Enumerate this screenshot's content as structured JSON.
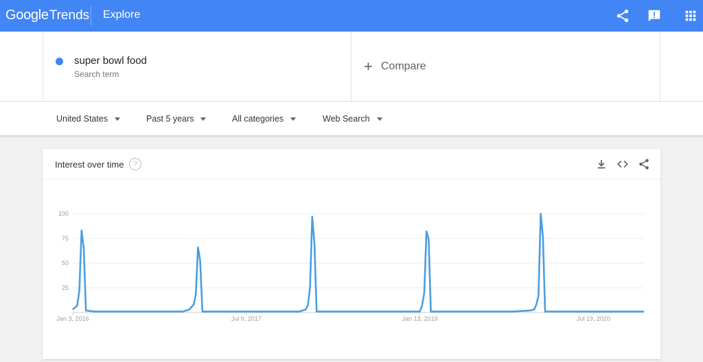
{
  "header": {
    "logo_google": "Google",
    "logo_trends": "Trends",
    "section": "Explore"
  },
  "search": {
    "term": "super bowl food",
    "term_type": "Search term",
    "compare_label": "Compare",
    "term_color": "#4285f4"
  },
  "filters": {
    "region": "United States",
    "time_range": "Past 5 years",
    "category": "All categories",
    "search_type": "Web Search"
  },
  "card": {
    "title": "Interest over time",
    "help": "?"
  },
  "icons": {
    "header": [
      "share-icon",
      "feedback-icon",
      "apps-icon"
    ],
    "card": [
      "download-icon",
      "embed-icon",
      "share-icon"
    ]
  },
  "chart_data": {
    "type": "line",
    "title": "Interest over time",
    "series_color": "#4a9ee0",
    "ylim": [
      0,
      100
    ],
    "y_ticks": [
      "100",
      "75",
      "50",
      "25"
    ],
    "x_labels": [
      "Jan 3, 2016",
      "Jul 9, 2017",
      "Jan 13, 2019",
      "Jul 19, 2020"
    ],
    "x_start": "2016-01-03",
    "x_end": "2020-12-27",
    "grid": true,
    "points": [
      [
        "2016-01-03",
        3
      ],
      [
        "2016-01-17",
        7
      ],
      [
        "2016-01-24",
        22
      ],
      [
        "2016-01-31",
        83
      ],
      [
        "2016-02-07",
        65
      ],
      [
        "2016-02-14",
        2
      ],
      [
        "2016-03-13",
        1
      ],
      [
        "2016-05-01",
        1
      ],
      [
        "2016-07-03",
        1
      ],
      [
        "2016-09-04",
        1
      ],
      [
        "2016-11-06",
        1
      ],
      [
        "2016-12-18",
        1
      ],
      [
        "2017-01-08",
        3
      ],
      [
        "2017-01-22",
        8
      ],
      [
        "2017-01-29",
        18
      ],
      [
        "2017-02-05",
        66
      ],
      [
        "2017-02-12",
        52
      ],
      [
        "2017-02-19",
        1
      ],
      [
        "2017-05-07",
        1
      ],
      [
        "2017-08-06",
        1
      ],
      [
        "2017-11-05",
        1
      ],
      [
        "2017-12-24",
        1
      ],
      [
        "2018-01-14",
        3
      ],
      [
        "2018-01-21",
        7
      ],
      [
        "2018-01-28",
        25
      ],
      [
        "2018-02-04",
        97
      ],
      [
        "2018-02-11",
        70
      ],
      [
        "2018-02-18",
        1
      ],
      [
        "2018-05-06",
        1
      ],
      [
        "2018-08-05",
        1
      ],
      [
        "2018-11-04",
        1
      ],
      [
        "2018-12-30",
        1
      ],
      [
        "2019-01-13",
        1
      ],
      [
        "2019-01-20",
        7
      ],
      [
        "2019-01-27",
        20
      ],
      [
        "2019-02-03",
        82
      ],
      [
        "2019-02-10",
        74
      ],
      [
        "2019-02-17",
        1
      ],
      [
        "2019-05-05",
        1
      ],
      [
        "2019-08-04",
        1
      ],
      [
        "2019-11-03",
        1
      ],
      [
        "2019-12-29",
        2
      ],
      [
        "2020-01-12",
        3
      ],
      [
        "2020-01-19",
        8
      ],
      [
        "2020-01-26",
        17
      ],
      [
        "2020-02-02",
        100
      ],
      [
        "2020-02-09",
        77
      ],
      [
        "2020-02-16",
        1
      ],
      [
        "2020-05-03",
        1
      ],
      [
        "2020-08-02",
        1
      ],
      [
        "2020-11-01",
        1
      ],
      [
        "2020-12-27",
        1
      ]
    ]
  }
}
